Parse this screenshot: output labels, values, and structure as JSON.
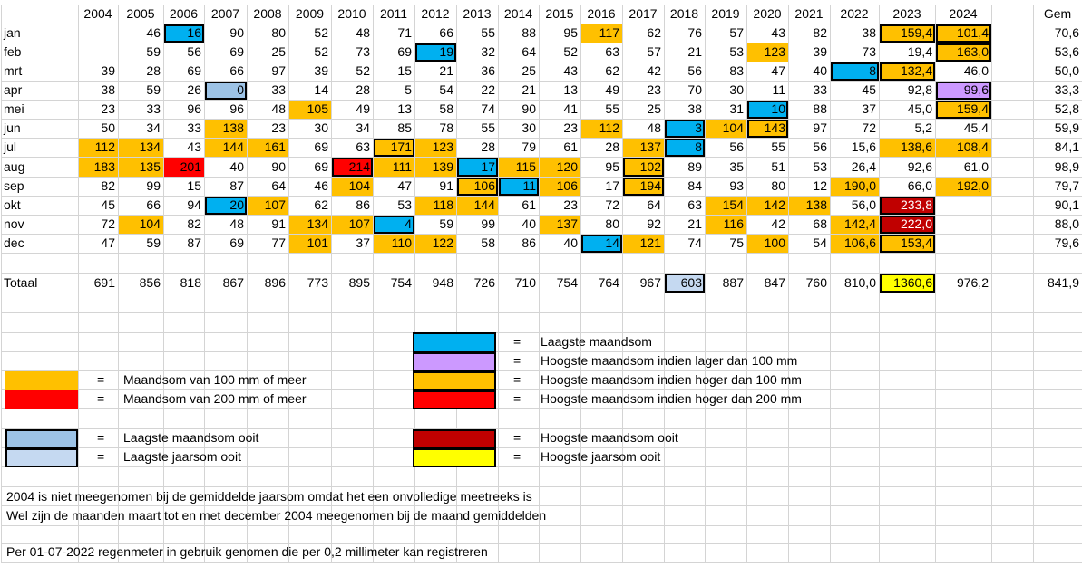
{
  "header": {
    "years": [
      "2004",
      "2005",
      "2006",
      "2007",
      "2008",
      "2009",
      "2010",
      "2011",
      "2012",
      "2013",
      "2014",
      "2015",
      "2016",
      "2017",
      "2018",
      "2019",
      "2020",
      "2021",
      "2022",
      "2023",
      "2024"
    ],
    "avg_label": "Gem"
  },
  "rows": [
    {
      "month": "jan",
      "values": [
        "",
        "46",
        "16",
        "90",
        "80",
        "52",
        "48",
        "71",
        "66",
        "55",
        "88",
        "95",
        "117",
        "62",
        "76",
        "57",
        "43",
        "82",
        "38",
        "159,4",
        "101,4"
      ],
      "avg": "70,6"
    },
    {
      "month": "feb",
      "values": [
        "",
        "59",
        "56",
        "69",
        "25",
        "52",
        "73",
        "69",
        "19",
        "32",
        "64",
        "52",
        "63",
        "57",
        "21",
        "53",
        "123",
        "39",
        "73",
        "19,4",
        "163,0"
      ],
      "avg": "53,6"
    },
    {
      "month": "mrt",
      "values": [
        "39",
        "28",
        "69",
        "66",
        "97",
        "39",
        "52",
        "15",
        "21",
        "36",
        "25",
        "43",
        "62",
        "42",
        "56",
        "83",
        "47",
        "40",
        "8",
        "132,4",
        "46,0"
      ],
      "avg": "50,0"
    },
    {
      "month": "apr",
      "values": [
        "38",
        "59",
        "26",
        "0",
        "33",
        "14",
        "28",
        "5",
        "54",
        "22",
        "21",
        "13",
        "49",
        "23",
        "70",
        "30",
        "11",
        "33",
        "45",
        "92,8",
        "99,6"
      ],
      "avg": "33,3"
    },
    {
      "month": "mei",
      "values": [
        "23",
        "33",
        "96",
        "96",
        "48",
        "105",
        "49",
        "13",
        "58",
        "74",
        "90",
        "41",
        "55",
        "25",
        "38",
        "31",
        "10",
        "88",
        "37",
        "45,0",
        "159,4"
      ],
      "avg": "52,8"
    },
    {
      "month": "jun",
      "values": [
        "50",
        "34",
        "33",
        "138",
        "23",
        "30",
        "34",
        "85",
        "78",
        "55",
        "30",
        "23",
        "112",
        "48",
        "3",
        "104",
        "143",
        "97",
        "72",
        "5,2",
        "45,4"
      ],
      "avg": "59,9"
    },
    {
      "month": "jul",
      "values": [
        "112",
        "134",
        "43",
        "144",
        "161",
        "69",
        "63",
        "171",
        "123",
        "28",
        "79",
        "61",
        "28",
        "137",
        "8",
        "56",
        "55",
        "56",
        "15,6",
        "138,6",
        "108,4"
      ],
      "avg": "84,1"
    },
    {
      "month": "aug",
      "values": [
        "183",
        "135",
        "201",
        "40",
        "90",
        "69",
        "214",
        "111",
        "139",
        "17",
        "115",
        "120",
        "95",
        "102",
        "89",
        "35",
        "51",
        "53",
        "26,4",
        "92,6",
        "61,0"
      ],
      "avg": "98,9"
    },
    {
      "month": "sep",
      "values": [
        "82",
        "99",
        "15",
        "87",
        "64",
        "46",
        "104",
        "47",
        "91",
        "106",
        "11",
        "106",
        "17",
        "194",
        "84",
        "93",
        "80",
        "12",
        "190,0",
        "66,0",
        "192,0"
      ],
      "avg": "79,7"
    },
    {
      "month": "okt",
      "values": [
        "45",
        "66",
        "94",
        "20",
        "107",
        "62",
        "86",
        "53",
        "118",
        "144",
        "61",
        "23",
        "72",
        "64",
        "63",
        "154",
        "142",
        "138",
        "56,0",
        "233,8",
        ""
      ],
      "avg": "90,1"
    },
    {
      "month": "nov",
      "values": [
        "72",
        "104",
        "82",
        "48",
        "91",
        "134",
        "107",
        "4",
        "59",
        "99",
        "40",
        "137",
        "80",
        "92",
        "21",
        "116",
        "42",
        "68",
        "142,4",
        "222,0",
        ""
      ],
      "avg": "88,0"
    },
    {
      "month": "dec",
      "values": [
        "47",
        "59",
        "87",
        "69",
        "77",
        "101",
        "37",
        "110",
        "122",
        "58",
        "86",
        "40",
        "14",
        "121",
        "74",
        "75",
        "100",
        "54",
        "106,6",
        "153,4",
        ""
      ],
      "avg": "79,6"
    }
  ],
  "totals": {
    "label": "Totaal",
    "values": [
      "691",
      "856",
      "818",
      "867",
      "896",
      "773",
      "895",
      "754",
      "948",
      "726",
      "710",
      "754",
      "764",
      "967",
      "603",
      "887",
      "847",
      "760",
      "810,0",
      "1360,6",
      "976,2"
    ],
    "avg": "841,9"
  },
  "styles": {
    "rows": [
      [
        "",
        "",
        "b",
        "",
        "",
        "",
        "",
        "",
        "",
        "",
        "",
        "",
        "o",
        "",
        "",
        "",
        "",
        "",
        "",
        "ob",
        "ob"
      ],
      [
        "",
        "",
        "",
        "",
        "",
        "",
        "",
        "",
        "b",
        "",
        "",
        "",
        "",
        "",
        "",
        "",
        "o",
        "",
        "",
        "",
        "ob"
      ],
      [
        "",
        "",
        "",
        "",
        "",
        "",
        "",
        "",
        "",
        "",
        "",
        "",
        "",
        "",
        "",
        "",
        "",
        "",
        "b",
        "ob",
        ""
      ],
      [
        "",
        "",
        "",
        "lb",
        "",
        "",
        "",
        "",
        "",
        "",
        "",
        "",
        "",
        "",
        "",
        "",
        "",
        "",
        "",
        "",
        "p"
      ],
      [
        "",
        "",
        "",
        "",
        "",
        "o",
        "",
        "",
        "",
        "",
        "",
        "",
        "",
        "",
        "",
        "",
        "b",
        "",
        "",
        "",
        "ob"
      ],
      [
        "",
        "",
        "",
        "o",
        "",
        "",
        "",
        "",
        "",
        "",
        "",
        "",
        "o",
        "",
        "b",
        "o",
        "ob",
        "",
        "",
        "",
        ""
      ],
      [
        "o",
        "o",
        "",
        "o",
        "o",
        "",
        "",
        "ob",
        "o",
        "",
        "",
        "",
        "",
        "o",
        "b",
        "",
        "",
        "",
        "",
        "o",
        "o"
      ],
      [
        "o",
        "o",
        "r",
        "",
        "",
        "",
        "rb",
        "o",
        "o",
        "b",
        "o",
        "o",
        "",
        "ob",
        "",
        "",
        "",
        "",
        "",
        "",
        ""
      ],
      [
        "",
        "",
        "",
        "",
        "",
        "",
        "o",
        "",
        "",
        "ob",
        "b",
        "o",
        "",
        "ob",
        "",
        "",
        "",
        "",
        "o",
        "",
        "o"
      ],
      [
        "",
        "",
        "",
        "b",
        "o",
        "",
        "",
        "",
        "o",
        "o",
        "",
        "",
        "",
        "",
        "",
        "o",
        "o",
        "o",
        "",
        "dr",
        ""
      ],
      [
        "",
        "o",
        "",
        "",
        "",
        "o",
        "o",
        "b",
        "",
        "",
        "",
        "o",
        "",
        "",
        "",
        "o",
        "",
        "",
        "o",
        "dr",
        ""
      ],
      [
        "",
        "",
        "",
        "",
        "",
        "o",
        "",
        "o",
        "o",
        "",
        "",
        "",
        "b",
        "o",
        "",
        "",
        "o",
        "",
        "o",
        "ob",
        ""
      ]
    ],
    "totals": [
      "",
      "",
      "",
      "",
      "",
      "",
      "",
      "",
      "",
      "",
      "",
      "",
      "",
      "",
      "lbt",
      "",
      "",
      "",
      "",
      "y",
      ""
    ]
  },
  "colors": {
    "blue": "#00b0f0",
    "light_blue": "#9dc3e6",
    "lowest_year": "#c5d9f1",
    "purple": "#cc99ff",
    "orange": "#ffc000",
    "red": "#ff0000",
    "dark_red": "#c00000",
    "yellow": "#ffff00"
  },
  "legend": {
    "equals": "=",
    "laagste_maandsom": "Laagste maandsom",
    "hoogste_lager_100": "Hoogste maandsom indien lager dan 100 mm",
    "maandsom_100": "Maandsom van 100 mm of meer",
    "hoogste_hoger_100": "Hoogste maandsom indien hoger dan 100 mm",
    "maandsom_200": "Maandsom van 200 mm of meer",
    "hoogste_hoger_200": "Hoogste maandsom indien hoger dan 200 mm",
    "laagste_maandsom_ooit": "Laagste maandsom ooit",
    "hoogste_maandsom_ooit": "Hoogste maandsom ooit",
    "laagste_jaarsom_ooit": "Laagste jaarsom ooit",
    "hoogste_jaarsom_ooit": "Hoogste jaarsom ooit"
  },
  "notes": {
    "note1": "2004 is niet meegenomen bij de gemiddelde jaarsom omdat het een onvolledige meetreeks is",
    "note2": "Wel zijn de maanden maart tot en met december 2004 meegenomen bij de maand gemiddelden",
    "note3": "Per 01-07-2022 regenmeter in gebruik genomen die per 0,2 millimeter kan registreren"
  }
}
